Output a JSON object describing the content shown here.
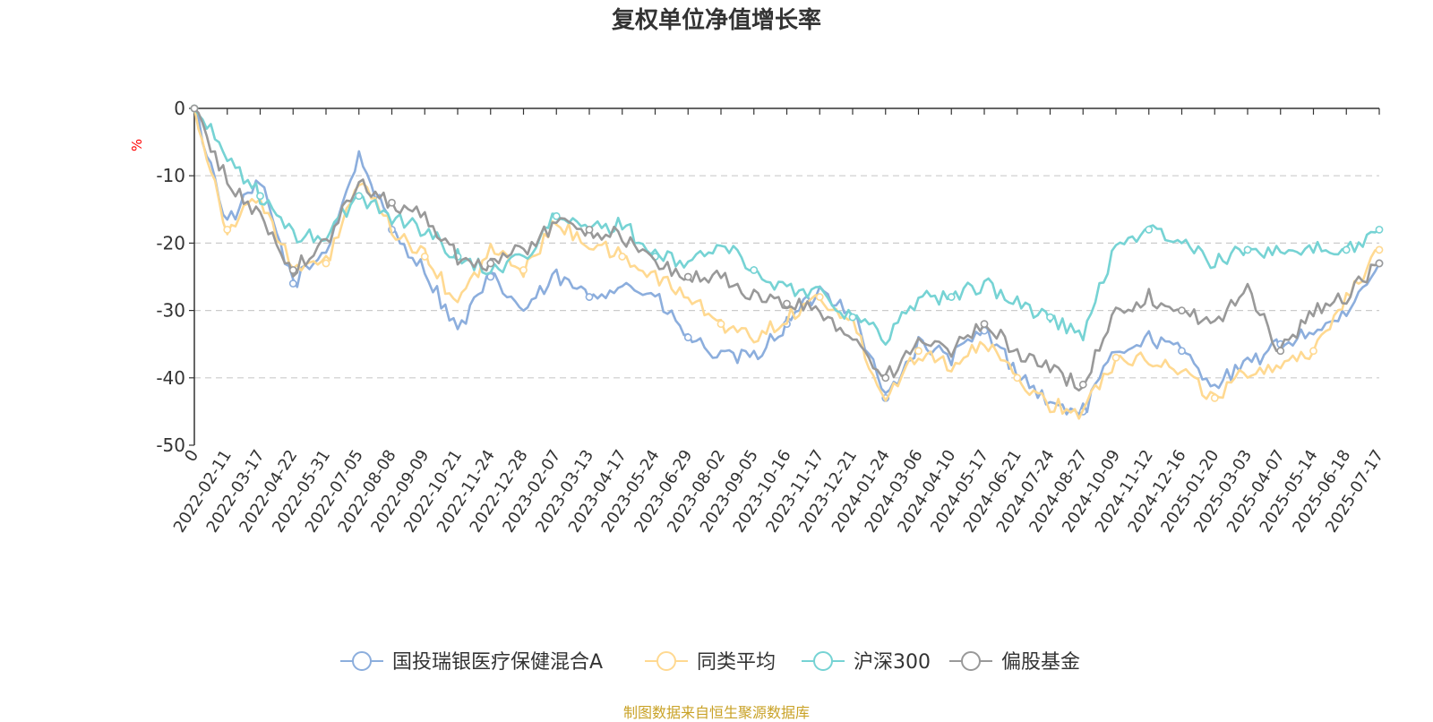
{
  "chart_data": {
    "type": "line",
    "title": "复权单位净值增长率",
    "ylabel": "%",
    "ylim": [
      -50,
      0
    ],
    "yticks": [
      0,
      -10,
      -20,
      -30,
      -40,
      -50
    ],
    "grid": true,
    "legend_position": "bottom-center",
    "x": [
      "0",
      "2022-02-11",
      "2022-03-17",
      "2022-04-22",
      "2022-05-31",
      "2022-07-05",
      "2022-08-08",
      "2022-09-09",
      "2022-10-21",
      "2022-11-24",
      "2022-12-28",
      "2023-02-07",
      "2023-03-13",
      "2023-04-17",
      "2023-05-24",
      "2023-06-29",
      "2023-08-02",
      "2023-09-05",
      "2023-10-16",
      "2023-11-17",
      "2023-12-21",
      "2024-01-24",
      "2024-03-06",
      "2024-04-10",
      "2024-05-17",
      "2024-06-21",
      "2024-07-24",
      "2024-08-27",
      "2024-10-09",
      "2024-11-12",
      "2024-12-16",
      "2025-01-20",
      "2025-03-03",
      "2025-04-07",
      "2025-05-14",
      "2025-06-18",
      "2025-07-17"
    ],
    "series": [
      {
        "name": "国投瑞银医疗保健混合A",
        "color": "#8caedd",
        "values": [
          0,
          -17,
          -11,
          -26,
          -21,
          -7,
          -18,
          -24,
          -33,
          -25,
          -30,
          -25,
          -28,
          -26,
          -28,
          -34,
          -37,
          -37,
          -32,
          -27,
          -30,
          -43,
          -35,
          -37,
          -33,
          -39,
          -44,
          -45,
          -36,
          -34,
          -36,
          -41,
          -38,
          -35,
          -33,
          -31,
          -23
        ]
      },
      {
        "name": "同类平均",
        "color": "#ffd991",
        "values": [
          0,
          -18,
          -13,
          -24,
          -23,
          -11,
          -18,
          -22,
          -29,
          -21,
          -24,
          -17,
          -20,
          -22,
          -25,
          -28,
          -32,
          -34,
          -31,
          -28,
          -32,
          -43,
          -36,
          -38,
          -35,
          -40,
          -44,
          -45,
          -37,
          -37,
          -39,
          -43,
          -39,
          -38,
          -36,
          -28,
          -21
        ]
      },
      {
        "name": "沪深300",
        "color": "#76d3d4",
        "values": [
          0,
          -7,
          -13,
          -19,
          -19,
          -13,
          -16,
          -18,
          -22,
          -24,
          -22,
          -16,
          -18,
          -17,
          -22,
          -23,
          -20,
          -24,
          -27,
          -27,
          -31,
          -34,
          -28,
          -28,
          -26,
          -29,
          -31,
          -34,
          -20,
          -18,
          -20,
          -23,
          -21,
          -21,
          -21,
          -21,
          -18
        ]
      },
      {
        "name": "偏股基金",
        "color": "#999999",
        "values": [
          0,
          -11,
          -16,
          -24,
          -20,
          -11,
          -14,
          -16,
          -22,
          -23,
          -21,
          -17,
          -18,
          -19,
          -23,
          -25,
          -25,
          -28,
          -29,
          -30,
          -34,
          -40,
          -35,
          -36,
          -32,
          -36,
          -39,
          -41,
          -30,
          -28,
          -30,
          -32,
          -27,
          -36,
          -30,
          -28,
          -23
        ]
      }
    ]
  },
  "footer": "制图数据来自恒生聚源数据库"
}
